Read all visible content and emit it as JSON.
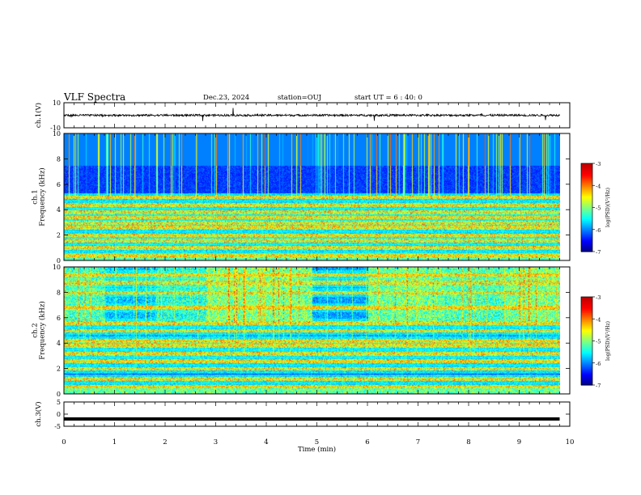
{
  "header": {
    "title": "VLF Spectra",
    "date": "Dec.23, 2024",
    "station": "station=OUJ",
    "start_ut": "start  UT =  6 : 40: 0"
  },
  "chart_data": [
    {
      "type": "line",
      "panel": "waveform-ch1",
      "ylabel": "ch.1(V)",
      "ylim": [
        -10,
        10
      ],
      "yticks": [
        "10",
        "-10"
      ],
      "xlim": [
        0,
        10
      ],
      "series_level": 0.0,
      "series_noise": "small, with occasional spikes"
    },
    {
      "type": "heatmap",
      "panel": "spectrogram-ch1",
      "ylabel": "ch.1\nFrequency (kHz)",
      "ylim": [
        0,
        10
      ],
      "yticks": [
        "0",
        "2",
        "4",
        "6",
        "8",
        "10"
      ],
      "xlim": [
        0,
        9.8
      ],
      "colorbar": {
        "label": "log(PSD)(V²/Hz)",
        "range": [
          -7,
          -3
        ],
        "ticks": [
          "-3",
          "-4",
          "-5",
          "-6",
          "-7"
        ]
      },
      "bands_kHz": [
        0.4,
        1.0,
        1.6,
        2.0,
        2.6,
        3.0,
        3.4,
        3.8,
        4.4,
        5.0
      ],
      "broadband_above_kHz": 5
    },
    {
      "type": "heatmap",
      "panel": "spectrogram-ch2",
      "ylabel": "ch.2\nFrequency (kHz)",
      "ylim": [
        0,
        10
      ],
      "yticks": [
        "0",
        "2",
        "4",
        "6",
        "8",
        "10"
      ],
      "xlim": [
        0,
        9.8
      ],
      "colorbar": {
        "label": "log(PSD)(V²/Hz)",
        "range": [
          -7,
          -3
        ],
        "ticks": [
          "-3",
          "-4",
          "-5",
          "-6",
          "-7"
        ]
      },
      "bands_kHz": [
        0.6,
        1.2,
        2.0,
        2.6,
        3.2,
        3.8,
        4.2,
        5.0,
        5.6,
        6.8,
        8.0,
        8.8,
        9.4
      ],
      "segments_min": [
        0,
        0.8,
        1.8,
        2.8,
        4.9,
        6.0,
        7.5,
        8.7,
        9.8
      ]
    },
    {
      "type": "line",
      "panel": "waveform-ch3",
      "ylabel": "ch.3(V)",
      "ylim": [
        -5,
        5
      ],
      "yticks": [
        "5",
        "0",
        "-5"
      ],
      "xlim": [
        0,
        10
      ],
      "series_level": -2.0
    }
  ],
  "xaxis": {
    "label": "Time (min)",
    "ticks": [
      "0",
      "1",
      "2",
      "3",
      "4",
      "5",
      "6",
      "7",
      "8",
      "9",
      "10"
    ],
    "range": [
      0,
      10
    ]
  }
}
